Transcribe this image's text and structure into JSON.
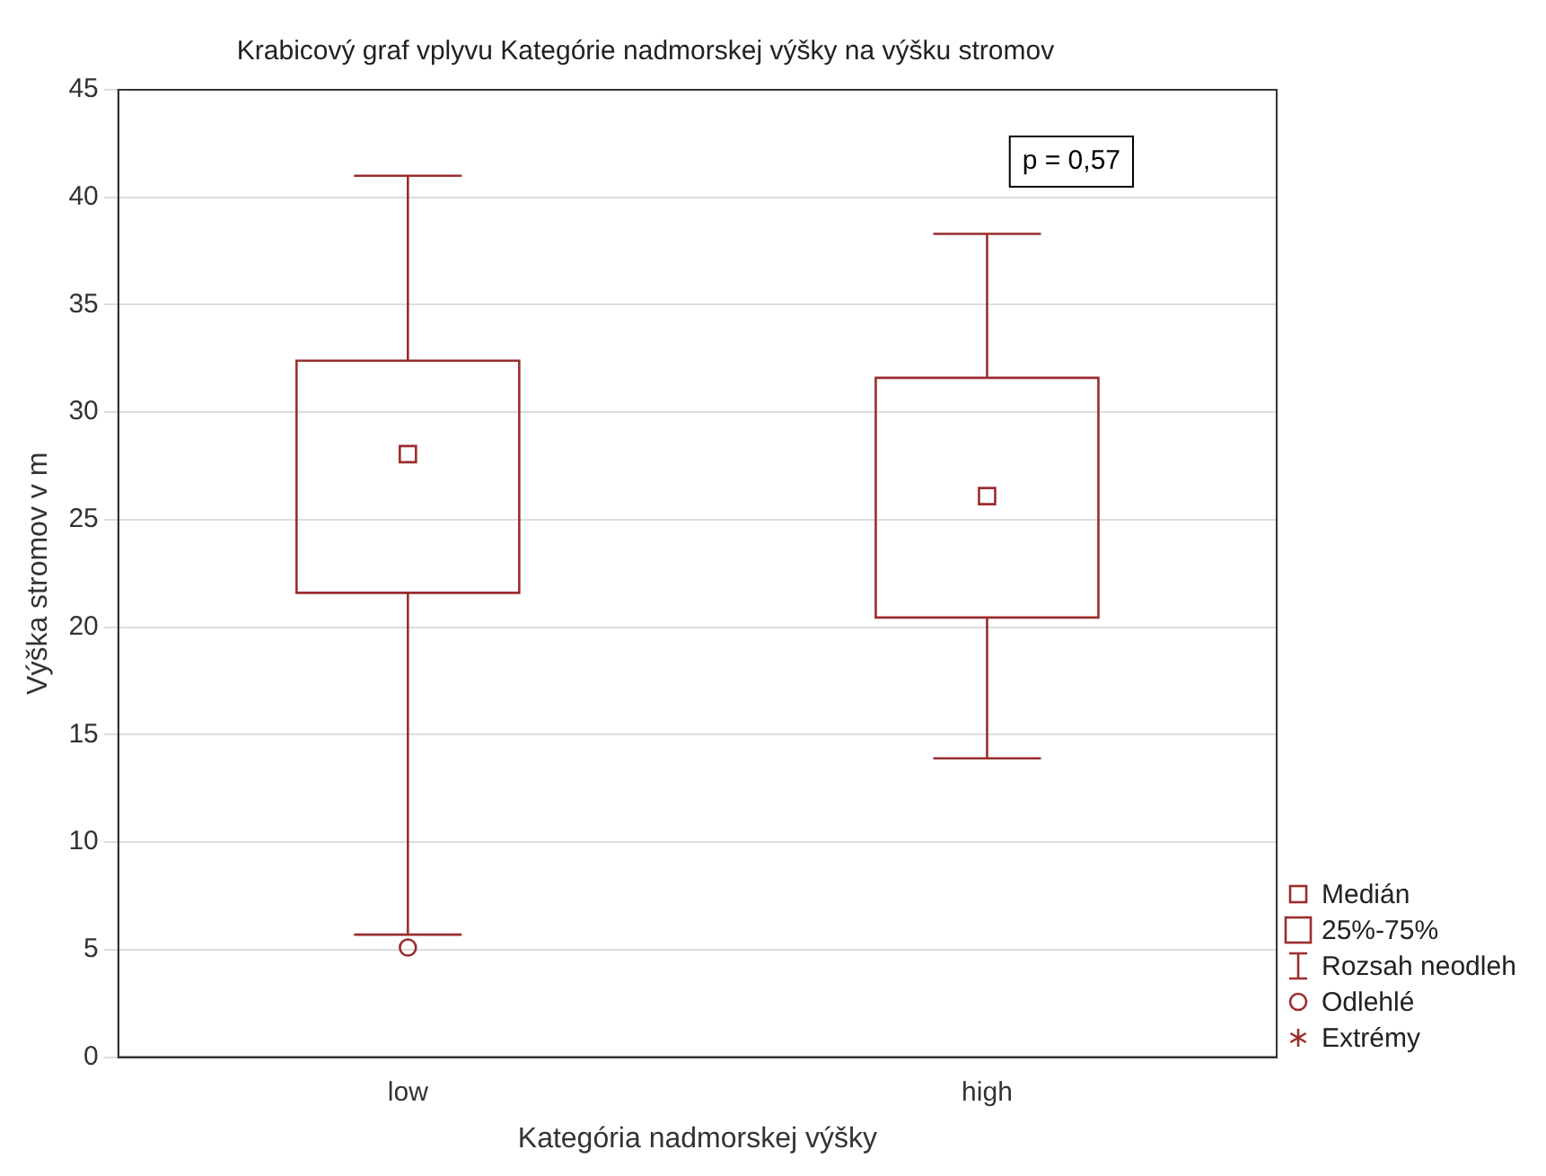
{
  "chart_data": {
    "type": "box",
    "title": "Krabicový graf vplyvu Kategórie nadmorskej výšky na výšku stromov",
    "xlabel": "Kategória nadmorskej výšky",
    "ylabel": "Výška stromov v m",
    "categories": [
      "low",
      "high"
    ],
    "series": [
      {
        "color": "#9b2d2d",
        "boxes": [
          {
            "low": 5.7,
            "q1": 21.6,
            "median": 28.05,
            "q3": 32.4,
            "high": 41.0,
            "outliers": [
              5.1
            ]
          },
          {
            "low": 13.9,
            "q1": 20.45,
            "median": 26.1,
            "q3": 31.6,
            "high": 38.3
          }
        ]
      }
    ],
    "ylim": [
      0,
      45
    ],
    "yticks": [
      0,
      5,
      10,
      15,
      20,
      25,
      30,
      35,
      40,
      45
    ],
    "grid": "y",
    "annotations": [
      "p = 0,57",
      "Medián",
      "25%-75%",
      "Rozsah neodleh",
      "Odlehlé",
      "Extrémy"
    ]
  }
}
